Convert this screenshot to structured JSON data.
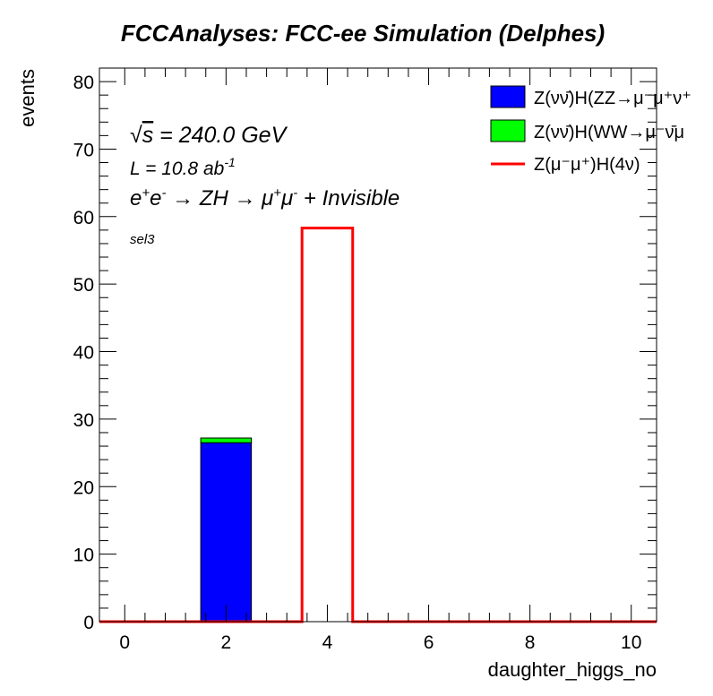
{
  "chart_data": {
    "type": "bar",
    "title": "FCCAnalyses: FCC-ee Simulation (Delphes)",
    "xlabel": "daughter_higgs_no",
    "ylabel": "events",
    "xlim": [
      -0.5,
      10.5
    ],
    "ylim": [
      0,
      82
    ],
    "x_ticks": [
      0,
      2,
      4,
      6,
      8,
      10
    ],
    "y_ticks": [
      0,
      10,
      20,
      30,
      40,
      50,
      60,
      70,
      80
    ],
    "grid": false,
    "legend_position": "top-right",
    "bin_edges": [
      -0.5,
      0.5,
      1.5,
      2.5,
      3.5,
      4.5,
      5.5,
      6.5,
      7.5,
      8.5,
      9.5,
      10.5
    ],
    "series": [
      {
        "name": "Z(νν̄)H(ZZ→μ⁻μ⁺ν⁺",
        "style": "filled-stacked",
        "color": "#0000ff",
        "values": [
          0,
          0,
          26.5,
          0,
          0,
          0,
          0,
          0,
          0,
          0,
          0
        ]
      },
      {
        "name": "Z(νν̄)H(WW→μ⁻ν̄μ",
        "style": "filled-stacked",
        "color": "#00ff00",
        "values": [
          0,
          0,
          0.7,
          0,
          0,
          0,
          0,
          0,
          0,
          0,
          0
        ]
      },
      {
        "name": "Z(μ⁻μ⁺)H(4ν)",
        "style": "line-step",
        "color": "#ff0000",
        "values": [
          0,
          0,
          0,
          0,
          58.3,
          0,
          0,
          0,
          0,
          0,
          0
        ]
      }
    ],
    "annotations": {
      "sqrt_s_sym": "√",
      "sqrt_s_var": "s",
      "sqrt_s_rest": " = 240.0 GeV",
      "lumi": "L = 10.8 ab",
      "lumi_exp": "-1",
      "process_e": "e",
      "process_ep": "+",
      "process_em": "-",
      "process_mid": " → ZH → μ",
      "process_mup": "+",
      "process_mu": "μ",
      "process_mum": "-",
      "process_tail": " + Invisible",
      "selection": "sel3"
    }
  }
}
